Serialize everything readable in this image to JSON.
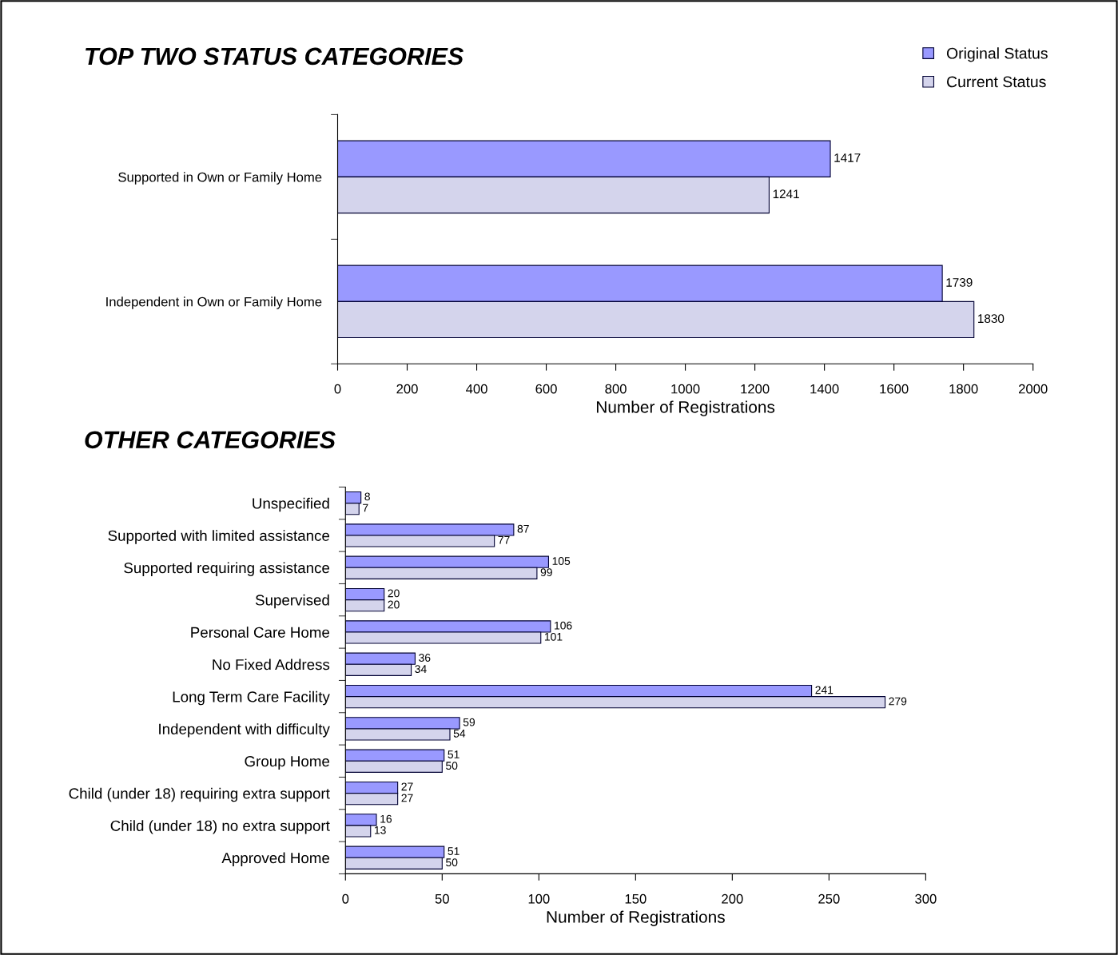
{
  "chart_data": [
    {
      "type": "bar",
      "orientation": "horizontal",
      "title": "TOP TWO STATUS CATEGORIES",
      "xlabel": "Number of Registrations",
      "categories": [
        "Supported in Own or Family Home",
        "Independent in Own or Family Home"
      ],
      "series": [
        {
          "name": "Original Status",
          "color": "#9999ff",
          "values": [
            1417,
            1739
          ]
        },
        {
          "name": "Current Status",
          "color": "#d4d4ec",
          "values": [
            1241,
            1830
          ]
        }
      ],
      "xlim": [
        0,
        2000
      ],
      "xticks": [
        0,
        200,
        400,
        600,
        800,
        1000,
        1200,
        1400,
        1600,
        1800,
        2000
      ],
      "data_labels": true,
      "legend": "top right",
      "grid": false
    },
    {
      "type": "bar",
      "orientation": "horizontal",
      "title": "OTHER CATEGORIES",
      "xlabel": "Number of Registrations",
      "categories": [
        "Unspecified",
        "Supported with limited assistance",
        "Supported requiring assistance",
        "Supervised",
        "Personal Care Home",
        "No Fixed Address",
        "Long Term Care Facility",
        "Independent with difficulty",
        "Group Home",
        "Child (under 18) requiring extra support",
        "Child (under 18) no extra support",
        "Approved Home"
      ],
      "series": [
        {
          "color": "#9999ff",
          "values": [
            8,
            87,
            105,
            20,
            106,
            36,
            241,
            59,
            51,
            27,
            16,
            51
          ]
        },
        {
          "color": "#d4d4ec",
          "values": [
            7,
            77,
            99,
            20,
            101,
            34,
            279,
            54,
            50,
            27,
            13,
            50
          ]
        }
      ],
      "xlim": [
        0,
        300
      ],
      "xticks": [
        0,
        50,
        100,
        150,
        200,
        250,
        300
      ],
      "data_labels": true,
      "legend": false,
      "grid": false
    }
  ]
}
